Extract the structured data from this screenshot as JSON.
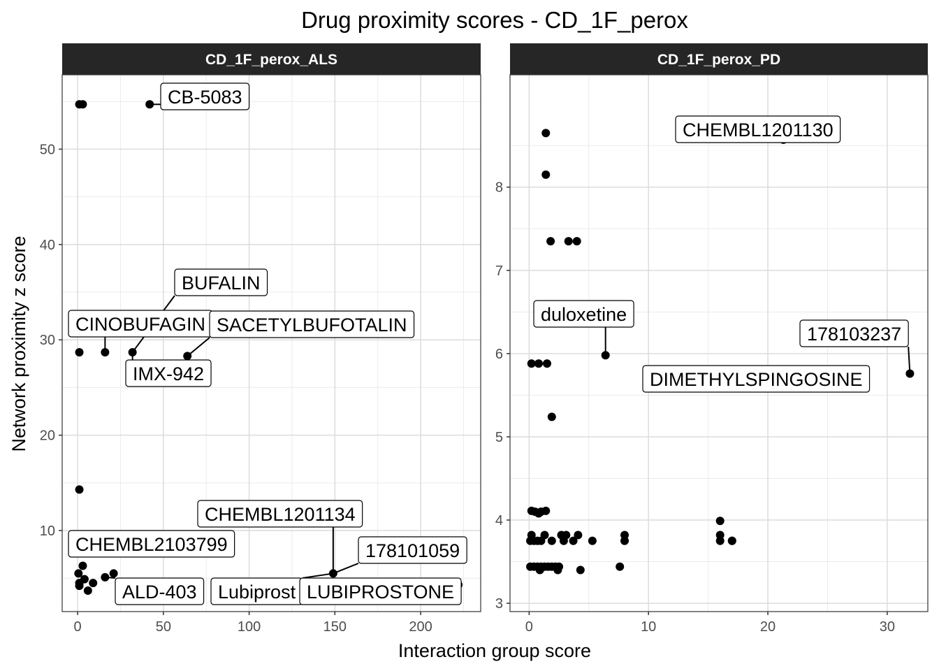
{
  "chart_data": {
    "type": "scatter",
    "title": "Drug proximity scores - CD_1F_perox",
    "xlabel": "Interaction group score",
    "ylabel": "Network proximity z score",
    "grid": true,
    "point_color": "#000000",
    "strip_color": "#262626",
    "panels": [
      {
        "name": "CD_1F_perox_ALS",
        "xlim": [
          -9,
          235
        ],
        "ylim": [
          1.5,
          57.8
        ],
        "xticks": [
          0,
          50,
          100,
          150,
          200
        ],
        "yticks": [
          10,
          20,
          30,
          40,
          50
        ],
        "points": [
          [
            1,
            54.7
          ],
          [
            3,
            54.7
          ],
          [
            42,
            54.7
          ],
          [
            1,
            28.7
          ],
          [
            16,
            28.7
          ],
          [
            32,
            28.7
          ],
          [
            64,
            28.3
          ],
          [
            1,
            14.3
          ],
          [
            1,
            9.1
          ],
          [
            0.5,
            5.5
          ],
          [
            3,
            6.3
          ],
          [
            1,
            4.5
          ],
          [
            1,
            4.2
          ],
          [
            4,
            4.9
          ],
          [
            6,
            3.7
          ],
          [
            9,
            4.5
          ],
          [
            16,
            5.1
          ],
          [
            21,
            5.5
          ],
          [
            149,
            5.5
          ],
          [
            222,
            4.3
          ]
        ],
        "labels": [
          {
            "text": "CB-5083",
            "x": 42,
            "y": 54.7
          },
          {
            "text": "BUFALIN",
            "x": 32,
            "y": 28.7
          },
          {
            "text": "CINOBUFAGIN",
            "x": 16,
            "y": 28.7
          },
          {
            "text": "SACETYLBUFOTALIN",
            "x": 64,
            "y": 28.3
          },
          {
            "text": "IMX-942",
            "x": 32,
            "y": 28.7
          },
          {
            "text": "CHEMBL1201134",
            "x": 149,
            "y": 5.5
          },
          {
            "text": "178101059",
            "x": 149,
            "y": 5.5
          },
          {
            "text": "CHEMBL2103799",
            "x": 1,
            "y": 9.1
          },
          {
            "text": "ALD-403",
            "x": 16,
            "y": 5.1
          },
          {
            "text": "Lubiprost",
            "x": 149,
            "y": 5.5
          },
          {
            "text": "LUBIPROSTONE",
            "x": 222,
            "y": 4.3
          }
        ]
      },
      {
        "name": "CD_1F_perox_PD",
        "xlim": [
          -1.6,
          33.4
        ],
        "ylim": [
          2.9,
          9.35
        ],
        "xticks": [
          0,
          10,
          20,
          30
        ],
        "yticks": [
          3,
          4,
          5,
          6,
          7,
          8
        ],
        "points": [
          [
            1.4,
            8.65
          ],
          [
            1.4,
            8.15
          ],
          [
            21.3,
            8.57
          ],
          [
            1.8,
            7.35
          ],
          [
            3.3,
            7.35
          ],
          [
            4.0,
            7.35
          ],
          [
            0.8,
            6.54
          ],
          [
            0.9,
            6.54
          ],
          [
            0.2,
            5.88
          ],
          [
            0.8,
            5.88
          ],
          [
            1.5,
            5.88
          ],
          [
            6.4,
            5.98
          ],
          [
            21.3,
            5.76
          ],
          [
            31.9,
            5.76
          ],
          [
            1.9,
            5.24
          ],
          [
            0.2,
            4.11
          ],
          [
            0.5,
            4.1
          ],
          [
            0.8,
            4.08
          ],
          [
            1.0,
            4.1
          ],
          [
            1.4,
            4.11
          ],
          [
            0.2,
            3.82
          ],
          [
            1.3,
            3.82
          ],
          [
            2.7,
            3.82
          ],
          [
            3.1,
            3.82
          ],
          [
            4.1,
            3.82
          ],
          [
            8.0,
            3.82
          ],
          [
            16.0,
            3.82
          ],
          [
            0.1,
            3.75
          ],
          [
            0.4,
            3.75
          ],
          [
            0.7,
            3.75
          ],
          [
            1.0,
            3.75
          ],
          [
            1.9,
            3.75
          ],
          [
            2.9,
            3.75
          ],
          [
            3.7,
            3.75
          ],
          [
            5.3,
            3.75
          ],
          [
            8.0,
            3.75
          ],
          [
            16.0,
            3.75
          ],
          [
            17.0,
            3.75
          ],
          [
            16.0,
            3.99
          ],
          [
            17.0,
            3.75
          ],
          [
            0.1,
            3.44
          ],
          [
            0.4,
            3.44
          ],
          [
            0.7,
            3.44
          ],
          [
            1.0,
            3.44
          ],
          [
            1.3,
            3.44
          ],
          [
            1.6,
            3.44
          ],
          [
            1.9,
            3.44
          ],
          [
            2.2,
            3.44
          ],
          [
            2.5,
            3.44
          ],
          [
            0.9,
            3.4
          ],
          [
            2.4,
            3.4
          ],
          [
            4.3,
            3.4
          ],
          [
            7.6,
            3.44
          ]
        ],
        "labels": [
          {
            "text": "CHEMBL1201130",
            "x": 21.3,
            "y": 8.57
          },
          {
            "text": "duloxetine",
            "x": 6.4,
            "y": 5.98
          },
          {
            "text": "178103237",
            "x": 31.9,
            "y": 5.76
          },
          {
            "text": "DIMETHYLSPINGOSINE",
            "x": 21.3,
            "y": 5.76
          }
        ]
      }
    ]
  }
}
